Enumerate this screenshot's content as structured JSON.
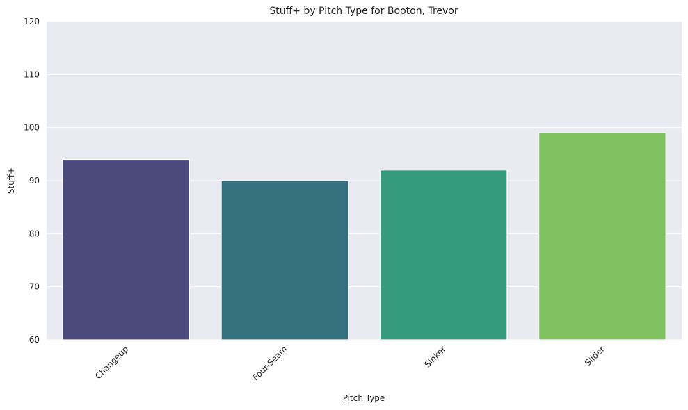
{
  "chart_data": {
    "type": "bar",
    "title": "Stuff+ by Pitch Type for Booton, Trevor",
    "xlabel": "Pitch Type",
    "ylabel": "Stuff+",
    "categories": [
      "Changeup",
      "Four-Seam",
      "Sinker",
      "Slider"
    ],
    "values": [
      94,
      90,
      92,
      99
    ],
    "colors": [
      "#4a4b7c",
      "#367180",
      "#35997b",
      "#80c260"
    ],
    "ylim": [
      60,
      120
    ],
    "yticks": [
      60,
      70,
      80,
      90,
      100,
      110,
      120
    ],
    "grid": true,
    "background": "#eaeaf2",
    "xtick_rotation": 45
  }
}
